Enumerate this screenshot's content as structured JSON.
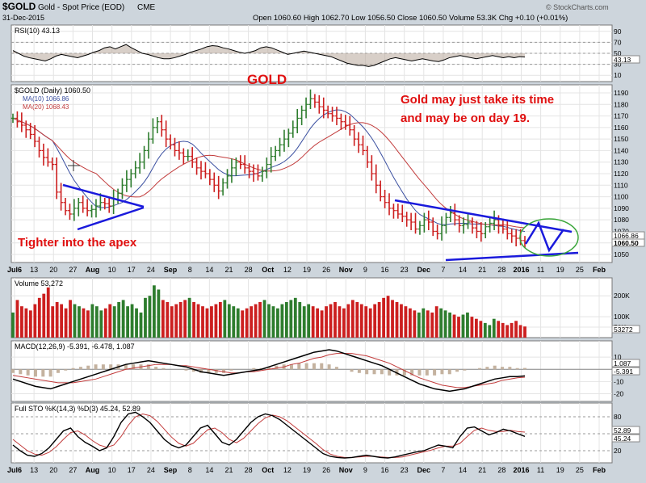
{
  "header": {
    "symbol": "$GOLD",
    "name": "Gold - Spot Price (EOD)",
    "exchange": "CME",
    "date": "31-Dec-2015",
    "quote": "Open 1060.60  High 1062.70  Low 1056.50  Close 1060.50  Volume 53.3K  Chg +0.10 (+0.01%)",
    "chg_arrow": "▲",
    "watermark": "© StockCharts.com"
  },
  "colors": {
    "up": "#2e7d2e",
    "down": "#cc1f1f",
    "ma10": "#3a4fa0",
    "ma20": "#c23b3b",
    "trendline": "#1a1adc",
    "circle": "#3aa63a",
    "annotation": "#e01010",
    "panel_bg": "#ffffff"
  },
  "annotations": {
    "gold_title": "GOLD",
    "note_line1": "Gold may just take its time",
    "note_line2": "and may be on day 19.",
    "apex": "Tighter into the apex"
  },
  "chart_data": [
    {
      "panel": "rsi",
      "type": "line",
      "label": "RSI(10) 43.13",
      "last": 43.13,
      "ylim": [
        0,
        100
      ],
      "ticks": [
        10,
        30,
        50,
        70,
        90
      ],
      "ref_lines": [
        30,
        50,
        70
      ],
      "values": [
        55,
        50,
        45,
        42,
        40,
        38,
        36,
        40,
        45,
        48,
        46,
        44,
        42,
        45,
        48,
        52,
        55,
        60,
        62,
        58,
        62,
        66,
        60,
        55,
        50,
        48,
        45,
        42,
        40,
        40,
        42,
        45,
        48,
        52,
        55,
        58,
        62,
        64,
        63,
        60,
        58,
        55,
        52,
        50,
        52,
        55,
        60,
        62,
        60,
        56,
        52,
        48,
        50,
        52,
        54,
        52,
        50,
        48,
        46,
        44,
        40,
        36,
        32,
        30,
        28,
        28,
        26,
        28,
        32,
        36,
        40,
        42,
        40,
        38,
        36,
        38,
        40,
        38,
        36,
        35,
        38,
        42,
        44,
        46,
        44,
        42,
        40,
        42,
        44,
        46,
        44,
        42,
        44,
        42,
        44,
        43.13
      ]
    },
    {
      "panel": "price",
      "type": "ohlc",
      "label": "$GOLD (Daily) 1060.50",
      "legend": [
        {
          "name": "MA(10) 1066.86",
          "key": "ma10"
        },
        {
          "name": "MA(20) 1068.43",
          "key": "ma20"
        }
      ],
      "ylim": [
        1043,
        1197
      ],
      "ticks": [
        1050,
        1060,
        1070,
        1080,
        1090,
        1100,
        1110,
        1120,
        1130,
        1140,
        1150,
        1160,
        1170,
        1180,
        1190
      ],
      "last_labels": [
        "1066.86",
        "1060.50"
      ],
      "x_tick_labels": [
        "Jul6",
        "13",
        "20",
        "27",
        "Aug",
        "10",
        "17",
        "24",
        "Sep",
        "8",
        "14",
        "21",
        "28",
        "Oct",
        "12",
        "19",
        "26",
        "Nov",
        "9",
        "16",
        "23",
        "Dec",
        "7",
        "14",
        "21",
        "28",
        "2016",
        "11",
        "19",
        "25",
        "Feb"
      ],
      "closes": [
        1168,
        1165,
        1162,
        1158,
        1154,
        1148,
        1140,
        1134,
        1130,
        1128,
        1104,
        1095,
        1088,
        1085,
        1090,
        1095,
        1090,
        1088,
        1089,
        1092,
        1095,
        1094,
        1092,
        1098,
        1103,
        1110,
        1115,
        1120,
        1125,
        1130,
        1140,
        1150,
        1160,
        1165,
        1158,
        1150,
        1145,
        1140,
        1138,
        1135,
        1135,
        1130,
        1125,
        1122,
        1120,
        1115,
        1110,
        1105,
        1112,
        1118,
        1125,
        1130,
        1128,
        1125,
        1122,
        1120,
        1118,
        1122,
        1128,
        1135,
        1140,
        1145,
        1150,
        1155,
        1160,
        1168,
        1175,
        1180,
        1185,
        1182,
        1178,
        1175,
        1172,
        1170,
        1168,
        1165,
        1162,
        1158,
        1150,
        1145,
        1140,
        1130,
        1120,
        1110,
        1100,
        1095,
        1090,
        1088,
        1085,
        1083,
        1080,
        1078,
        1072,
        1075,
        1080,
        1078,
        1070,
        1068,
        1075,
        1082,
        1086,
        1080,
        1075,
        1076,
        1078,
        1073,
        1070,
        1068,
        1074,
        1077,
        1080,
        1075,
        1072,
        1068,
        1066,
        1064,
        1062,
        1060.5
      ]
    },
    {
      "panel": "volume",
      "type": "bar",
      "label": "Volume 53,272",
      "last_label": "53272",
      "ticks": [
        {
          "v": 50000,
          "t": "50K"
        },
        {
          "v": 100000,
          "t": "100K"
        },
        {
          "v": 200000,
          "t": "200K"
        }
      ],
      "ymax": 255000,
      "values": [
        120000,
        180000,
        150000,
        140000,
        130000,
        160000,
        190000,
        210000,
        240000,
        150000,
        170000,
        160000,
        140000,
        180000,
        160000,
        150000,
        140000,
        130000,
        160000,
        150000,
        130000,
        140000,
        160000,
        150000,
        170000,
        180000,
        150000,
        160000,
        140000,
        120000,
        190000,
        200000,
        250000,
        230000,
        180000,
        170000,
        150000,
        160000,
        170000,
        180000,
        190000,
        170000,
        160000,
        150000,
        140000,
        150000,
        160000,
        170000,
        180000,
        160000,
        150000,
        140000,
        130000,
        140000,
        150000,
        160000,
        170000,
        180000,
        160000,
        150000,
        140000,
        160000,
        170000,
        180000,
        190000,
        170000,
        150000,
        160000,
        150000,
        140000,
        130000,
        150000,
        160000,
        170000,
        150000,
        140000,
        160000,
        180000,
        170000,
        160000,
        150000,
        140000,
        160000,
        170000,
        190000,
        200000,
        180000,
        170000,
        160000,
        150000,
        140000,
        130000,
        120000,
        140000,
        130000,
        120000,
        150000,
        140000,
        130000,
        120000,
        110000,
        100000,
        110000,
        120000,
        100000,
        90000,
        80000,
        70000,
        60000,
        90000,
        80000,
        70000,
        60000,
        70000,
        80000,
        60000,
        53272
      ]
    },
    {
      "panel": "macd",
      "type": "line",
      "label": "MACD(12,26,9) -5.391, -6.478, 1.087",
      "ylim": [
        -25,
        22
      ],
      "ticks": [
        -20,
        -10,
        0,
        10
      ],
      "last_labels": [
        "1.087",
        "-5.391"
      ],
      "macd": [
        -8,
        -10,
        -12,
        -14,
        -15,
        -16,
        -14,
        -12,
        -10,
        -8,
        -6,
        -4,
        -2,
        0,
        2,
        4,
        5,
        6,
        7,
        6,
        5,
        4,
        3,
        2,
        0,
        -2,
        -3,
        -4,
        -5,
        -4,
        -3,
        -2,
        -1,
        0,
        2,
        4,
        6,
        8,
        10,
        12,
        14,
        15,
        16,
        15,
        13,
        11,
        9,
        7,
        5,
        3,
        0,
        -3,
        -6,
        -9,
        -12,
        -14,
        -16,
        -17,
        -18,
        -17,
        -16,
        -14,
        -12,
        -10,
        -8,
        -7,
        -6,
        -6,
        -5.4
      ],
      "signal": [
        -5,
        -6,
        -7,
        -8,
        -9,
        -10,
        -11,
        -11,
        -11,
        -10,
        -9,
        -8,
        -6,
        -4,
        -2,
        0,
        1,
        2,
        3,
        4,
        4,
        4,
        3,
        3,
        2,
        1,
        0,
        -1,
        -2,
        -3,
        -3,
        -2,
        -2,
        -1,
        0,
        1,
        2,
        4,
        5,
        7,
        9,
        10,
        12,
        13,
        13,
        13,
        12,
        11,
        9,
        7,
        5,
        2,
        -1,
        -4,
        -7,
        -9,
        -11,
        -13,
        -14,
        -15,
        -15,
        -14,
        -13,
        -12,
        -11,
        -9,
        -8,
        -7,
        -6.5
      ]
    },
    {
      "panel": "sto",
      "type": "line",
      "label": "Full STO %K(14,3) %D(3) 45.24, 52.89",
      "ylim": [
        0,
        100
      ],
      "ticks": [
        20,
        50,
        80
      ],
      "ref_lines": [
        20,
        50,
        80
      ],
      "last_labels": [
        "52.89",
        "45.24"
      ],
      "k": [
        30,
        20,
        12,
        10,
        15,
        25,
        40,
        55,
        60,
        45,
        35,
        28,
        20,
        25,
        45,
        70,
        85,
        88,
        80,
        70,
        55,
        40,
        30,
        25,
        30,
        45,
        60,
        65,
        50,
        35,
        30,
        40,
        55,
        70,
        80,
        85,
        82,
        75,
        65,
        55,
        45,
        35,
        25,
        15,
        10,
        8,
        7,
        8,
        10,
        12,
        10,
        8,
        7,
        9,
        12,
        15,
        18,
        20,
        25,
        30,
        28,
        25,
        45,
        60,
        62,
        55,
        48,
        52,
        58,
        55,
        50,
        45.24
      ],
      "d": [
        40,
        30,
        20,
        14,
        12,
        17,
        27,
        40,
        52,
        55,
        48,
        38,
        30,
        26,
        30,
        45,
        65,
        80,
        85,
        82,
        72,
        58,
        44,
        33,
        28,
        33,
        45,
        57,
        60,
        52,
        40,
        34,
        42,
        55,
        68,
        78,
        83,
        80,
        73,
        63,
        53,
        43,
        33,
        22,
        14,
        10,
        8,
        8,
        9,
        10,
        10,
        9,
        8,
        8,
        9,
        12,
        15,
        18,
        21,
        25,
        28,
        28,
        33,
        45,
        56,
        60,
        56,
        54,
        54,
        56,
        54,
        52.89
      ]
    }
  ]
}
